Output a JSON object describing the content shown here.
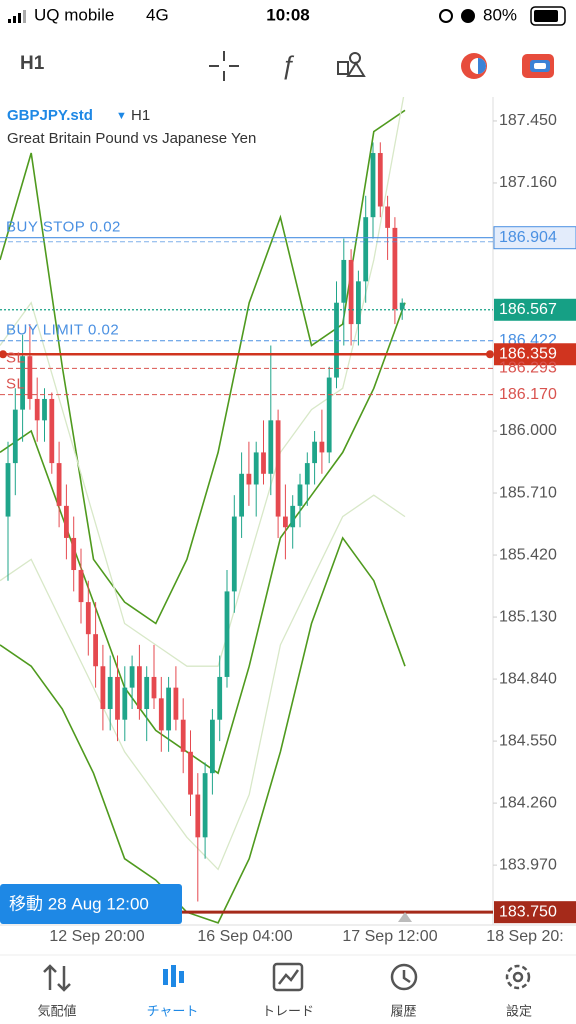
{
  "status_bar": {
    "carrier": "UQ mobile",
    "network": "4G",
    "time": "10:08",
    "battery": "80%"
  },
  "toolbar": {
    "timeframe": "H1"
  },
  "chart_data": {
    "type": "candlestick",
    "symbol": "GBPJPY.std",
    "timeframe": "H1",
    "description": "Great Britain Pound vs Japanese Yen",
    "up_color": "#1fa58a",
    "down_color": "#e5494f",
    "open": [
      185.6,
      185.85,
      186.1,
      186.35,
      186.15,
      186.05,
      186.15,
      185.85,
      185.65,
      185.5,
      185.35,
      185.2,
      185.05,
      184.9,
      184.7,
      184.85,
      184.65,
      184.8,
      184.9,
      184.7,
      184.85,
      184.75,
      184.6,
      184.8,
      184.65,
      184.5,
      184.3,
      184.1,
      184.4,
      184.65,
      184.85,
      185.25,
      185.6,
      185.8,
      185.75,
      185.9,
      185.8,
      186.05,
      185.6,
      185.55,
      185.65,
      185.75,
      185.85,
      185.95,
      185.9,
      186.25,
      186.6,
      186.8,
      186.5,
      186.7,
      187.0,
      187.3,
      187.05,
      186.95,
      186.57
    ],
    "high": [
      185.95,
      186.2,
      186.45,
      186.5,
      186.25,
      186.2,
      186.18,
      185.95,
      185.75,
      185.6,
      185.45,
      185.3,
      185.2,
      185.0,
      184.95,
      184.95,
      184.9,
      184.95,
      185.0,
      184.9,
      185.0,
      184.85,
      184.85,
      184.9,
      184.75,
      184.6,
      184.4,
      184.45,
      184.7,
      184.95,
      185.35,
      185.7,
      185.9,
      185.95,
      185.95,
      186.05,
      186.4,
      186.1,
      185.75,
      185.7,
      185.8,
      185.9,
      186.0,
      186.1,
      186.3,
      186.7,
      186.9,
      186.85,
      186.75,
      187.1,
      187.35,
      187.35,
      187.1,
      187.0,
      186.62
    ],
    "low": [
      185.3,
      185.7,
      185.95,
      186.1,
      185.95,
      185.95,
      185.8,
      185.55,
      185.4,
      185.25,
      185.1,
      184.95,
      184.8,
      184.6,
      184.6,
      184.55,
      184.55,
      184.7,
      184.65,
      184.55,
      184.7,
      184.5,
      184.5,
      184.6,
      184.4,
      184.2,
      183.8,
      184.0,
      184.3,
      184.55,
      184.8,
      185.15,
      185.5,
      185.65,
      185.6,
      185.75,
      185.7,
      185.5,
      185.4,
      185.45,
      185.55,
      185.65,
      185.75,
      185.8,
      185.85,
      186.2,
      186.4,
      186.4,
      186.4,
      186.6,
      186.9,
      187.0,
      186.8,
      186.5,
      186.52
    ],
    "close": [
      185.85,
      186.1,
      186.35,
      186.15,
      186.05,
      186.15,
      185.85,
      185.65,
      185.5,
      185.35,
      185.2,
      185.05,
      184.9,
      184.7,
      184.85,
      184.65,
      184.8,
      184.9,
      184.7,
      184.85,
      184.75,
      184.6,
      184.8,
      184.65,
      184.5,
      184.3,
      184.1,
      184.4,
      184.65,
      184.85,
      185.25,
      185.6,
      185.8,
      185.75,
      185.9,
      185.8,
      186.05,
      185.6,
      185.55,
      185.65,
      185.75,
      185.85,
      185.95,
      185.9,
      186.25,
      186.6,
      186.8,
      186.5,
      186.7,
      187.0,
      187.3,
      187.05,
      186.95,
      186.57,
      186.6
    ],
    "bands": [
      {
        "color": "#4f9a1e",
        "values": [
          186.8,
          187.3,
          186.3,
          185.4,
          185.2,
          185.1,
          185.4,
          185.9,
          186.6,
          187.0,
          186.4,
          186.5,
          187.4,
          187.5
        ]
      },
      {
        "color": "#4f9a1e",
        "values": [
          185.9,
          186.0,
          185.6,
          185.2,
          184.8,
          184.6,
          184.5,
          184.4,
          184.9,
          185.5,
          185.7,
          185.9,
          186.2,
          186.6
        ]
      },
      {
        "color": "#4f9a1e",
        "values": [
          185.0,
          184.9,
          184.7,
          184.4,
          184.0,
          183.9,
          183.75,
          183.7,
          184.0,
          184.5,
          185.1,
          185.5,
          185.3,
          184.9
        ]
      },
      {
        "color": "#d8e8c8",
        "values": [
          186.4,
          186.6,
          186.1,
          185.6,
          185.1,
          185.0,
          184.9,
          184.9,
          185.4,
          185.9,
          186.1,
          186.2,
          186.8,
          187.6
        ]
      },
      {
        "color": "#d8e8c8",
        "values": [
          185.3,
          185.4,
          185.1,
          184.8,
          184.5,
          184.3,
          184.1,
          183.95,
          184.3,
          185.0,
          185.3,
          185.6,
          185.7,
          185.6
        ]
      }
    ],
    "ylim": [
      183.69,
      187.562
    ],
    "yticks": [
      {
        "value": 187.45,
        "label": "187.450"
      },
      {
        "value": 187.16,
        "label": "187.160"
      },
      {
        "value": 186.0,
        "label": "186.000"
      },
      {
        "value": 185.71,
        "label": "185.710"
      },
      {
        "value": 185.42,
        "label": "185.420"
      },
      {
        "value": 185.13,
        "label": "185.130"
      },
      {
        "value": 184.84,
        "label": "184.840"
      },
      {
        "value": 184.55,
        "label": "184.550"
      },
      {
        "value": 184.26,
        "label": "184.260"
      },
      {
        "value": 183.97,
        "label": "183.970"
      }
    ],
    "x_labels": [
      "12 Sep 20:00",
      "16 Sep 04:00",
      "17 Sep 12:00",
      "18 Sep 20:"
    ],
    "levels": [
      {
        "text": "BUY STOP 0.02",
        "value": 186.904,
        "value_label": "186.904",
        "color": "#4a90e2",
        "style": "solid",
        "box": "light"
      },
      {
        "value": 186.567,
        "value_label": "186.567",
        "color": "#16a085",
        "style": "dotted",
        "box": "filled"
      },
      {
        "text": "BUY LIMIT 0.02",
        "value": 186.422,
        "value_label": "186.422",
        "color": "#4a90e2",
        "style": "dashed",
        "box": "none"
      },
      {
        "value": 186.359,
        "value_label": "186.359",
        "color": "#d0341f",
        "style": "thick",
        "box": "filled"
      },
      {
        "text": "SL",
        "value": 186.293,
        "value_label": "186.293",
        "color": "#d9534f",
        "style": "dashed",
        "box": "none"
      },
      {
        "text": "SL",
        "value": 186.17,
        "value_label": "186.170",
        "color": "#d9534f",
        "style": "dashed",
        "box": "none"
      },
      {
        "value": 183.75,
        "value_label": "183.750",
        "color": "#a52a1a",
        "style": "thick",
        "box": "filled"
      }
    ],
    "scroll_label": "移動 28 Aug 12:00"
  },
  "nav": {
    "items": [
      "気配値",
      "チャート",
      "トレード",
      "履歴",
      "設定"
    ],
    "active": 1
  }
}
